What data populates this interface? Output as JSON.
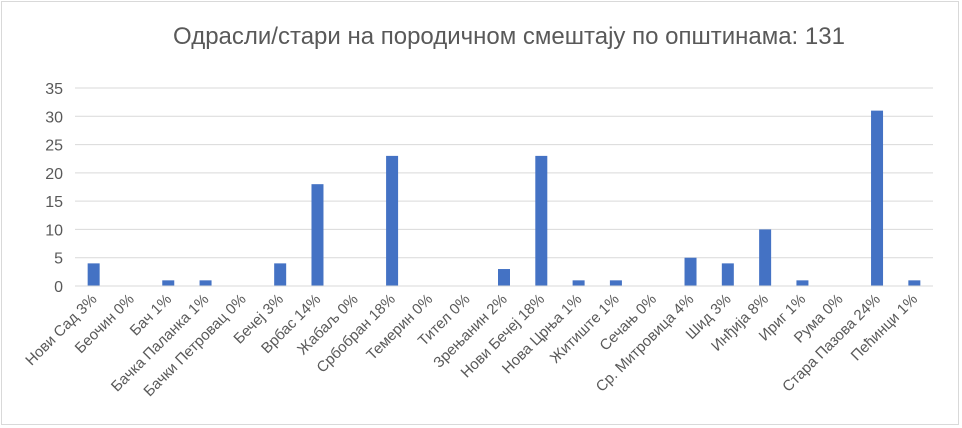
{
  "chart_data": {
    "type": "bar",
    "title": "Одрасли/стари  на породичном смештају по општинама: 131",
    "xlabel": "",
    "ylabel": "",
    "ylim": [
      0,
      35
    ],
    "yticks": [
      "0",
      "5",
      "10",
      "15",
      "20",
      "25",
      "30",
      "35"
    ],
    "grid": true,
    "categories": [
      "Нови Сад 3%",
      "Беочин 0%",
      "Бач 1%",
      "Бачка Паланка 1%",
      "Бачки Петровац 0%",
      "Бечеј 3%",
      "Врбас 14%",
      "Жабаљ 0%",
      "Србобран 18%",
      "Темерин 0%",
      "Тител 0%",
      "Зрењанин 2%",
      "Нови Бечеј 18%",
      "Нова Црња 1%",
      "Житиште 1%",
      "Сечањ 0%",
      "Ср. Митровица 4%",
      "Шид 3%",
      "Инђија 8%",
      "Ириг 1%",
      "Рума 0%",
      "Стара Пазова 24%",
      "Пећинци 1%"
    ],
    "values": [
      4,
      0,
      1,
      1,
      0,
      4,
      18,
      0,
      23,
      0,
      0,
      3,
      23,
      1,
      1,
      0,
      5,
      4,
      10,
      1,
      0,
      31,
      1
    ],
    "colors": {
      "bar": "#4472c4",
      "grid": "#d9d9d9",
      "text": "#595959"
    }
  }
}
